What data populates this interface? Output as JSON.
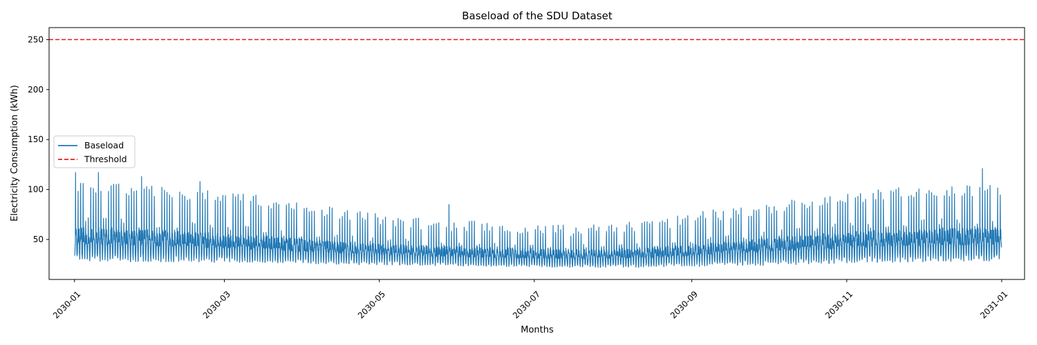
{
  "chart_data": {
    "type": "line",
    "title": "Baseload of the SDU Dataset",
    "xlabel": "Months",
    "ylabel": "Electricity Consumption (kWh)",
    "x_range": [
      "2029-12-22",
      "2031-01-10"
    ],
    "ylim": [
      10,
      262
    ],
    "x_ticks": [
      "2030-01",
      "2030-03",
      "2030-05",
      "2030-07",
      "2030-09",
      "2030-11",
      "2031-01"
    ],
    "y_ticks": [
      50,
      100,
      150,
      200,
      250
    ],
    "grid": false,
    "legend_position": "center-left",
    "series": [
      {
        "name": "Baseload",
        "color": "#1f77b4",
        "style": "solid",
        "resolution": "hourly",
        "envelope": {
          "months": [
            "2030-01",
            "2030-02",
            "2030-03",
            "2030-04",
            "2030-05",
            "2030-06",
            "2030-07",
            "2030-08",
            "2030-09",
            "2030-10",
            "2030-11",
            "2030-12"
          ],
          "daily_peak": [
            103,
            97,
            90,
            78,
            68,
            64,
            60,
            66,
            78,
            88,
            97,
            101
          ],
          "typical_high": [
            62,
            58,
            54,
            48,
            44,
            42,
            40,
            42,
            48,
            55,
            60,
            62
          ],
          "typical_low": [
            35,
            34,
            32,
            30,
            28,
            26,
            25,
            26,
            29,
            31,
            34,
            35
          ],
          "min": [
            28,
            27,
            27,
            25,
            24,
            23,
            22,
            22,
            23,
            25,
            27,
            28
          ]
        },
        "notable_peaks": [
          {
            "x": "2030-01-01",
            "y": 117
          },
          {
            "x": "2030-01-10",
            "y": 117
          },
          {
            "x": "2030-01-27",
            "y": 113
          },
          {
            "x": "2030-02-19",
            "y": 108
          },
          {
            "x": "2030-05-28",
            "y": 85
          },
          {
            "x": "2030-12-24",
            "y": 121
          }
        ]
      },
      {
        "name": "Threshold",
        "color": "#e41a1c",
        "style": "dashed",
        "value": 250
      }
    ]
  }
}
